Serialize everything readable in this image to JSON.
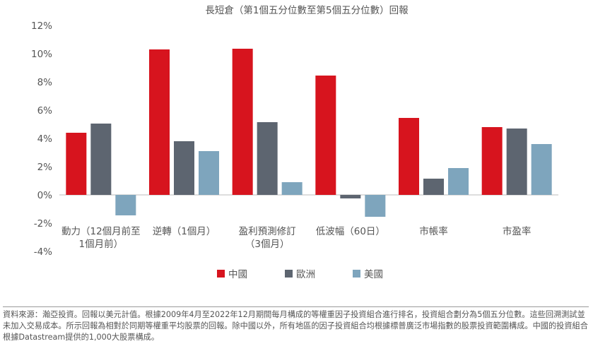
{
  "chart_data": {
    "type": "bar",
    "title": "長短倉（第1個五分位數至第5個五分位數）回報",
    "categories": [
      [
        "動力（12個月前至",
        "1個月前）"
      ],
      [
        "逆轉（1個月）"
      ],
      [
        "盈利預測修訂",
        "（3個月）"
      ],
      [
        "低波幅（60日）"
      ],
      [
        "市帳率"
      ],
      [
        "市盈率"
      ]
    ],
    "series": [
      {
        "name": "中國",
        "color": "#d7141e",
        "values": [
          4.4,
          10.3,
          10.35,
          8.45,
          5.45,
          4.8
        ]
      },
      {
        "name": "歐洲",
        "color": "#5d6570",
        "values": [
          5.05,
          3.8,
          5.15,
          -0.25,
          1.15,
          4.7
        ]
      },
      {
        "name": "美國",
        "color": "#7ea5bd",
        "values": [
          -1.45,
          3.1,
          0.9,
          -1.55,
          1.9,
          3.6
        ]
      }
    ],
    "ylim": [
      -4,
      12
    ],
    "yticks": [
      -4,
      -2,
      0,
      2,
      4,
      6,
      8,
      10,
      12
    ],
    "ytick_labels": [
      "-4%",
      "-2%",
      "0%",
      "2%",
      "4%",
      "6%",
      "8%",
      "10%",
      "12%"
    ],
    "xlabel": "",
    "ylabel": "",
    "legend_position": "bottom",
    "grid": false
  },
  "note": "資料來源：瀚亞投資。回報以美元計值。根據2009年4月至2022年12月期間每月構成的等權重因子投資組合進行排名，投資組合劃分為5個五分位數。這些回溯測試並未加入交易成本。所示回報為相對於同期等權重平均股票的回報。除中國以外，所有地區的因子投資組合均根據標普廣泛市場指數的股票投資範圍構成。中國的投資組合根據Datastream提供的1,000大股票構成。"
}
